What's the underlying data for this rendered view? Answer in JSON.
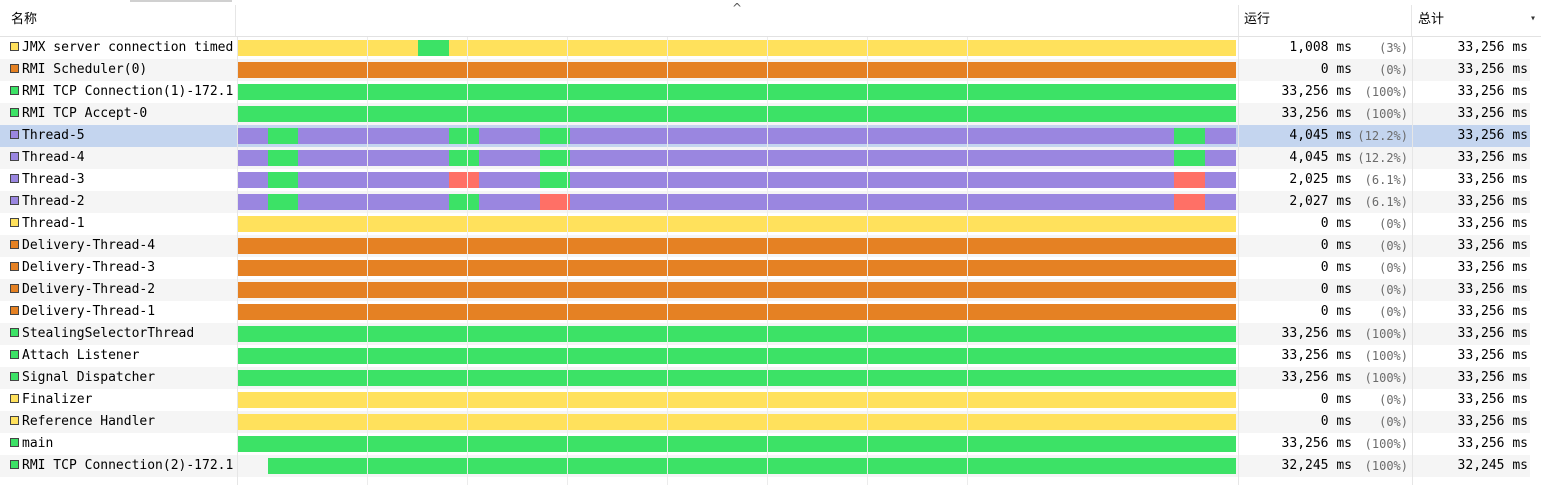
{
  "header": {
    "name": "名称",
    "run": "运行",
    "total": "总计",
    "sort_caret": "^",
    "menu_glyph": "▾"
  },
  "colors": {
    "running": "#3ce266",
    "sleeping": "#e58123",
    "waiting": "#ffe15c",
    "park": "#9a86e0",
    "monitor": "#ff7066",
    "selected_row": "#c4d5ef"
  },
  "threads": [
    {
      "name": "JMX server connection timed",
      "color": "#ffe15c",
      "run_ms": "1,008 ms",
      "run_pct": "(3%)",
      "total": "33,256 ms",
      "segments": [
        {
          "s": 0,
          "e": 180,
          "c": "#ffe15c"
        },
        {
          "s": 180,
          "e": 211,
          "c": "#3ce266"
        },
        {
          "s": 211,
          "e": 998,
          "c": "#ffe15c"
        }
      ]
    },
    {
      "name": "RMI Scheduler(0)",
      "color": "#e58123",
      "run_ms": "0 ms",
      "run_pct": "(0%)",
      "total": "33,256 ms",
      "segments": [
        {
          "s": 0,
          "e": 998,
          "c": "#e58123"
        }
      ]
    },
    {
      "name": "RMI TCP Connection(1)-172.1",
      "color": "#3ce266",
      "run_ms": "33,256 ms",
      "run_pct": "(100%)",
      "total": "33,256 ms",
      "segments": [
        {
          "s": 0,
          "e": 998,
          "c": "#3ce266"
        }
      ]
    },
    {
      "name": "RMI TCP Accept-0",
      "color": "#3ce266",
      "run_ms": "33,256 ms",
      "run_pct": "(100%)",
      "total": "33,256 ms",
      "segments": [
        {
          "s": 0,
          "e": 998,
          "c": "#3ce266"
        }
      ]
    },
    {
      "name": "Thread-5",
      "color": "#9a86e0",
      "run_ms": "4,045 ms",
      "run_pct": "(12.2%)",
      "total": "33,256 ms",
      "selected": true,
      "segments": [
        {
          "s": 0,
          "e": 30,
          "c": "#9a86e0"
        },
        {
          "s": 30,
          "e": 60,
          "c": "#3ce266"
        },
        {
          "s": 60,
          "e": 211,
          "c": "#9a86e0"
        },
        {
          "s": 211,
          "e": 241,
          "c": "#3ce266"
        },
        {
          "s": 241,
          "e": 302,
          "c": "#9a86e0"
        },
        {
          "s": 302,
          "e": 332,
          "c": "#3ce266"
        },
        {
          "s": 332,
          "e": 936,
          "c": "#9a86e0"
        },
        {
          "s": 936,
          "e": 967,
          "c": "#3ce266"
        },
        {
          "s": 967,
          "e": 998,
          "c": "#9a86e0"
        }
      ]
    },
    {
      "name": "Thread-4",
      "color": "#9a86e0",
      "run_ms": "4,045 ms",
      "run_pct": "(12.2%)",
      "total": "33,256 ms",
      "segments": [
        {
          "s": 0,
          "e": 30,
          "c": "#9a86e0"
        },
        {
          "s": 30,
          "e": 60,
          "c": "#3ce266"
        },
        {
          "s": 60,
          "e": 211,
          "c": "#9a86e0"
        },
        {
          "s": 211,
          "e": 241,
          "c": "#3ce266"
        },
        {
          "s": 241,
          "e": 302,
          "c": "#9a86e0"
        },
        {
          "s": 302,
          "e": 332,
          "c": "#3ce266"
        },
        {
          "s": 332,
          "e": 936,
          "c": "#9a86e0"
        },
        {
          "s": 936,
          "e": 967,
          "c": "#3ce266"
        },
        {
          "s": 967,
          "e": 998,
          "c": "#9a86e0"
        }
      ]
    },
    {
      "name": "Thread-3",
      "color": "#9a86e0",
      "run_ms": "2,025 ms",
      "run_pct": "(6.1%)",
      "total": "33,256 ms",
      "segments": [
        {
          "s": 0,
          "e": 30,
          "c": "#9a86e0"
        },
        {
          "s": 30,
          "e": 60,
          "c": "#3ce266"
        },
        {
          "s": 60,
          "e": 211,
          "c": "#9a86e0"
        },
        {
          "s": 211,
          "e": 241,
          "c": "#ff7066"
        },
        {
          "s": 241,
          "e": 302,
          "c": "#9a86e0"
        },
        {
          "s": 302,
          "e": 332,
          "c": "#3ce266"
        },
        {
          "s": 332,
          "e": 936,
          "c": "#9a86e0"
        },
        {
          "s": 936,
          "e": 967,
          "c": "#ff7066"
        },
        {
          "s": 967,
          "e": 998,
          "c": "#9a86e0"
        }
      ]
    },
    {
      "name": "Thread-2",
      "color": "#9a86e0",
      "run_ms": "2,027 ms",
      "run_pct": "(6.1%)",
      "total": "33,256 ms",
      "segments": [
        {
          "s": 0,
          "e": 30,
          "c": "#9a86e0"
        },
        {
          "s": 30,
          "e": 60,
          "c": "#3ce266"
        },
        {
          "s": 60,
          "e": 211,
          "c": "#9a86e0"
        },
        {
          "s": 211,
          "e": 241,
          "c": "#3ce266"
        },
        {
          "s": 241,
          "e": 302,
          "c": "#9a86e0"
        },
        {
          "s": 302,
          "e": 332,
          "c": "#ff7066"
        },
        {
          "s": 332,
          "e": 936,
          "c": "#9a86e0"
        },
        {
          "s": 936,
          "e": 967,
          "c": "#ff7066"
        },
        {
          "s": 967,
          "e": 998,
          "c": "#9a86e0"
        }
      ]
    },
    {
      "name": "Thread-1",
      "color": "#ffe15c",
      "run_ms": "0 ms",
      "run_pct": "(0%)",
      "total": "33,256 ms",
      "segments": [
        {
          "s": 0,
          "e": 998,
          "c": "#ffe15c"
        }
      ]
    },
    {
      "name": "Delivery-Thread-4",
      "color": "#e58123",
      "run_ms": "0 ms",
      "run_pct": "(0%)",
      "total": "33,256 ms",
      "segments": [
        {
          "s": 0,
          "e": 998,
          "c": "#e58123"
        }
      ]
    },
    {
      "name": "Delivery-Thread-3",
      "color": "#e58123",
      "run_ms": "0 ms",
      "run_pct": "(0%)",
      "total": "33,256 ms",
      "segments": [
        {
          "s": 0,
          "e": 998,
          "c": "#e58123"
        }
      ]
    },
    {
      "name": "Delivery-Thread-2",
      "color": "#e58123",
      "run_ms": "0 ms",
      "run_pct": "(0%)",
      "total": "33,256 ms",
      "segments": [
        {
          "s": 0,
          "e": 998,
          "c": "#e58123"
        }
      ]
    },
    {
      "name": "Delivery-Thread-1",
      "color": "#e58123",
      "run_ms": "0 ms",
      "run_pct": "(0%)",
      "total": "33,256 ms",
      "segments": [
        {
          "s": 0,
          "e": 998,
          "c": "#e58123"
        }
      ]
    },
    {
      "name": "StealingSelectorThread",
      "color": "#3ce266",
      "run_ms": "33,256 ms",
      "run_pct": "(100%)",
      "total": "33,256 ms",
      "segments": [
        {
          "s": 0,
          "e": 998,
          "c": "#3ce266"
        }
      ]
    },
    {
      "name": "Attach Listener",
      "color": "#3ce266",
      "run_ms": "33,256 ms",
      "run_pct": "(100%)",
      "total": "33,256 ms",
      "segments": [
        {
          "s": 0,
          "e": 998,
          "c": "#3ce266"
        }
      ]
    },
    {
      "name": "Signal Dispatcher",
      "color": "#3ce266",
      "run_ms": "33,256 ms",
      "run_pct": "(100%)",
      "total": "33,256 ms",
      "segments": [
        {
          "s": 0,
          "e": 998,
          "c": "#3ce266"
        }
      ]
    },
    {
      "name": "Finalizer",
      "color": "#ffe15c",
      "run_ms": "0 ms",
      "run_pct": "(0%)",
      "total": "33,256 ms",
      "segments": [
        {
          "s": 0,
          "e": 998,
          "c": "#ffe15c"
        }
      ]
    },
    {
      "name": "Reference Handler",
      "color": "#ffe15c",
      "run_ms": "0 ms",
      "run_pct": "(0%)",
      "total": "33,256 ms",
      "segments": [
        {
          "s": 0,
          "e": 998,
          "c": "#ffe15c"
        }
      ]
    },
    {
      "name": "main",
      "color": "#3ce266",
      "run_ms": "33,256 ms",
      "run_pct": "(100%)",
      "total": "33,256 ms",
      "segments": [
        {
          "s": 0,
          "e": 998,
          "c": "#3ce266"
        }
      ]
    },
    {
      "name": "RMI TCP Connection(2)-172.1",
      "color": "#3ce266",
      "run_ms": "32,245 ms",
      "run_pct": "(100%)",
      "total": "32,245 ms",
      "segments": [
        {
          "s": 30,
          "e": 998,
          "c": "#3ce266"
        }
      ]
    }
  ]
}
